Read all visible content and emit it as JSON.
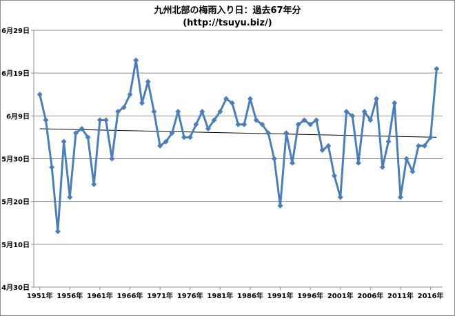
{
  "chart_data": {
    "type": "line",
    "title": "九州北部の梅雨入り日：過去67年分",
    "subtitle": "(http://tsuyu.biz/)",
    "xlabel": "",
    "ylabel": "",
    "x_tick_labels": [
      "1951年",
      "1956年",
      "1961年",
      "1966年",
      "1971年",
      "1976年",
      "1981年",
      "1986年",
      "1991年",
      "1996年",
      "2001年",
      "2006年",
      "2011年",
      "2016年"
    ],
    "y_tick_labels": [
      "4月30日",
      "5月10日",
      "5月20日",
      "5月30日",
      "6月9日",
      "6月19日",
      "6月29日"
    ],
    "ylim_days_after_apr30": [
      0,
      60
    ],
    "grid": "horizontal",
    "legend": "none",
    "series": [
      {
        "color": "#4a7ebb",
        "marker": "diamond",
        "x": [
          1951,
          1952,
          1953,
          1954,
          1955,
          1956,
          1957,
          1958,
          1959,
          1960,
          1961,
          1962,
          1963,
          1964,
          1965,
          1966,
          1967,
          1968,
          1969,
          1970,
          1971,
          1972,
          1973,
          1974,
          1975,
          1976,
          1977,
          1978,
          1979,
          1980,
          1981,
          1982,
          1983,
          1984,
          1985,
          1986,
          1987,
          1988,
          1989,
          1990,
          1991,
          1992,
          1993,
          1994,
          1995,
          1996,
          1997,
          1998,
          1999,
          2000,
          2001,
          2002,
          2003,
          2004,
          2005,
          2006,
          2007,
          2008,
          2009,
          2010,
          2011,
          2012,
          2013,
          2014,
          2015,
          2016,
          2017
        ],
        "values": [
          "6月14日",
          "6月8日",
          "5月28日",
          "5月13日",
          "6月3日",
          "5月21日",
          "6月5日",
          "6月6日",
          "6月4日",
          "5月24日",
          "6月8日",
          "6月8日",
          "5月30日",
          "6月10日",
          "6月11日",
          "6月14日",
          "6月22日",
          "6月12日",
          "6月17日",
          "6月10日",
          "6月2日",
          "6月3日",
          "6月5日",
          "6月10日",
          "6月4日",
          "6月4日",
          "6月7日",
          "6月10日",
          "6月6日",
          "6月8日",
          "6月10日",
          "6月13日",
          "6月12日",
          "6月7日",
          "6月7日",
          "6月13日",
          "6月8日",
          "6月7日",
          "6月5日",
          "5月30日",
          "5月19日",
          "6月5日",
          "5月29日",
          "6月7日",
          "6月8日",
          "6月7日",
          "6月8日",
          "6月1日",
          "6月2日",
          "5月26日",
          "5月21日",
          "6月10日",
          "6月9日",
          "5月29日",
          "6月10日",
          "6月8日",
          "6月13日",
          "5月28日",
          "6月3日",
          "6月12日",
          "5月21日",
          "5月30日",
          "5月27日",
          "6月2日",
          "6月2日",
          "6月4日",
          "6月20日"
        ]
      },
      {
        "type": "trendline",
        "color": "#000000",
        "start": [
          "1951年",
          "6月6日"
        ],
        "end": [
          "2017年",
          "6月4日"
        ]
      }
    ]
  }
}
